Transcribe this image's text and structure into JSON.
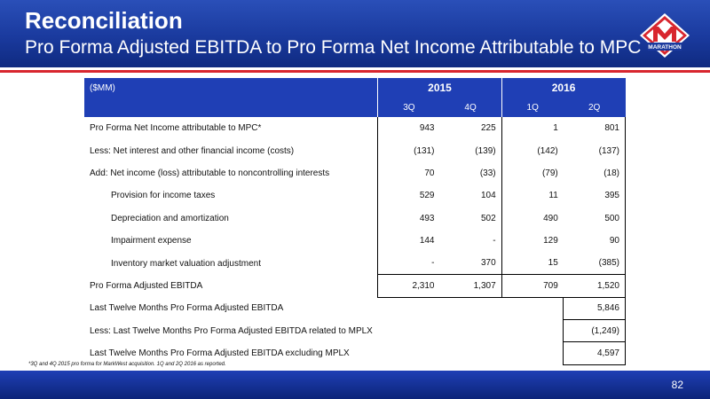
{
  "header": {
    "title": "Reconciliation",
    "subtitle": "Pro Forma Adjusted EBITDA  to Pro Forma Net Income Attributable to MPC",
    "logo_text": "MARATHON"
  },
  "table": {
    "unit_label": "($MM)",
    "years": [
      "2015",
      "2016"
    ],
    "quarters": [
      "3Q",
      "4Q",
      "1Q",
      "2Q"
    ],
    "rows": [
      {
        "label": "Pro Forma Net Income attributable to MPC*",
        "values": [
          "943",
          "225",
          "1",
          "801"
        ]
      },
      {
        "label": "Less: Net interest and other financial income (costs)",
        "values": [
          "(131)",
          "(139)",
          "(142)",
          "(137)"
        ]
      },
      {
        "label": "Add: Net income (loss) attributable to noncontrolling interests",
        "values": [
          "70",
          "(33)",
          "(79)",
          "(18)"
        ]
      },
      {
        "label": "Provision for income taxes",
        "values": [
          "529",
          "104",
          "11",
          "395"
        ]
      },
      {
        "label": "Depreciation and amortization",
        "values": [
          "493",
          "502",
          "490",
          "500"
        ]
      },
      {
        "label": "Impairment expense",
        "values": [
          "144",
          "-",
          "129",
          "90"
        ]
      },
      {
        "label": "Inventory market valuation adjustment",
        "values": [
          "-",
          "370",
          "15",
          "(385)"
        ]
      }
    ],
    "total_row": {
      "label": "Pro Forma Adjusted EBITDA",
      "values": [
        "2,310",
        "1,307",
        "709",
        "1,520"
      ]
    },
    "ltm_rows": [
      {
        "label": "Last Twelve Months Pro Forma  Adjusted EBITDA",
        "value": "5,846"
      },
      {
        "label": "Less: Last Twelve Months Pro Forma Adjusted EBITDA related to MPLX",
        "value": "(1,249)"
      },
      {
        "label": "Last Twelve Months Pro Forma Adjusted EBITDA excluding MPLX",
        "value": "4,597"
      }
    ]
  },
  "footnote": "*3Q and 4Q 2015 pro forma for MarkWest acquisition.  1Q and 2Q 2016 as reported.",
  "page_number": "82",
  "colors": {
    "brand_blue": "#1f3fb5",
    "brand_red": "#d8262e"
  }
}
